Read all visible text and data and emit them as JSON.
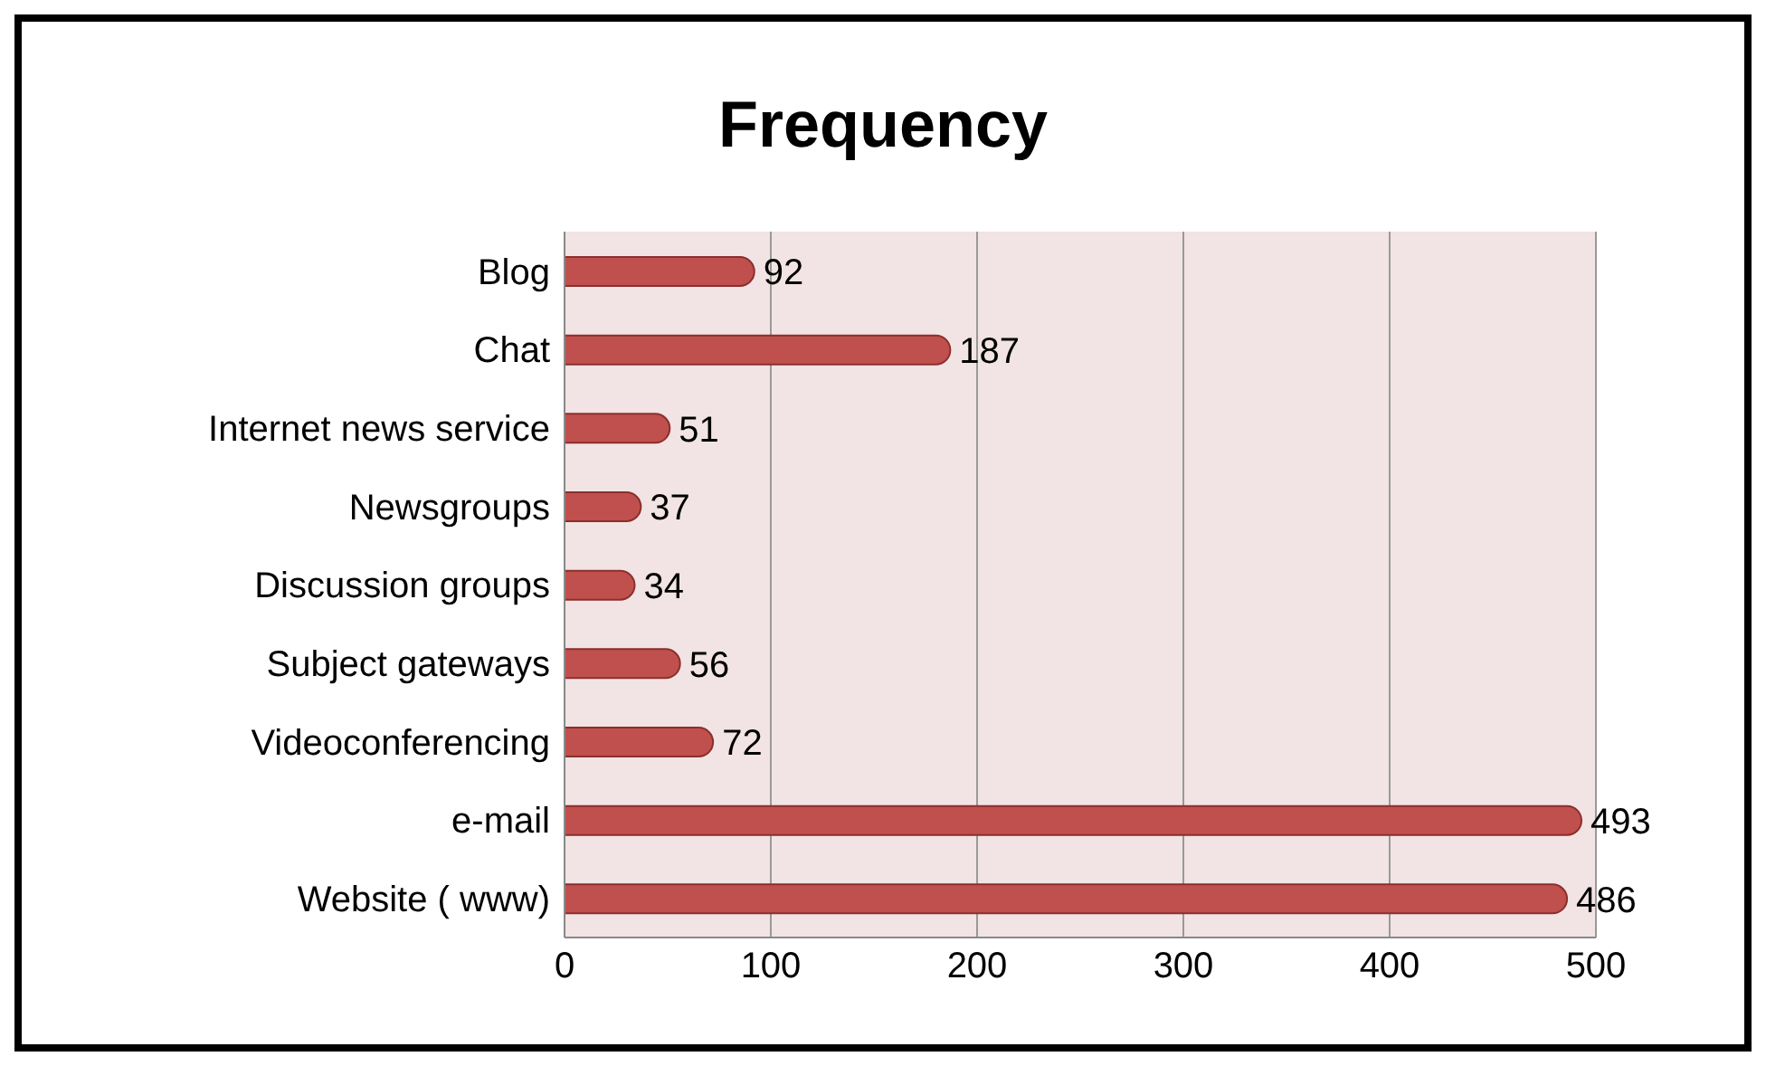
{
  "chart_data": {
    "type": "bar",
    "orientation": "horizontal",
    "title": "Frequency",
    "categories": [
      "Blog",
      "Chat",
      "Internet news service",
      "Newsgroups",
      "Discussion groups",
      "Subject gateways",
      "Videoconferencing",
      "e-mail",
      "Website ( www)"
    ],
    "values": [
      92,
      187,
      51,
      37,
      34,
      56,
      72,
      493,
      486
    ],
    "color": "#c0504d",
    "xlim": [
      0,
      500
    ],
    "xticks": [
      0,
      100,
      200,
      300,
      400,
      500
    ],
    "grid": "x",
    "data_labels": true
  }
}
